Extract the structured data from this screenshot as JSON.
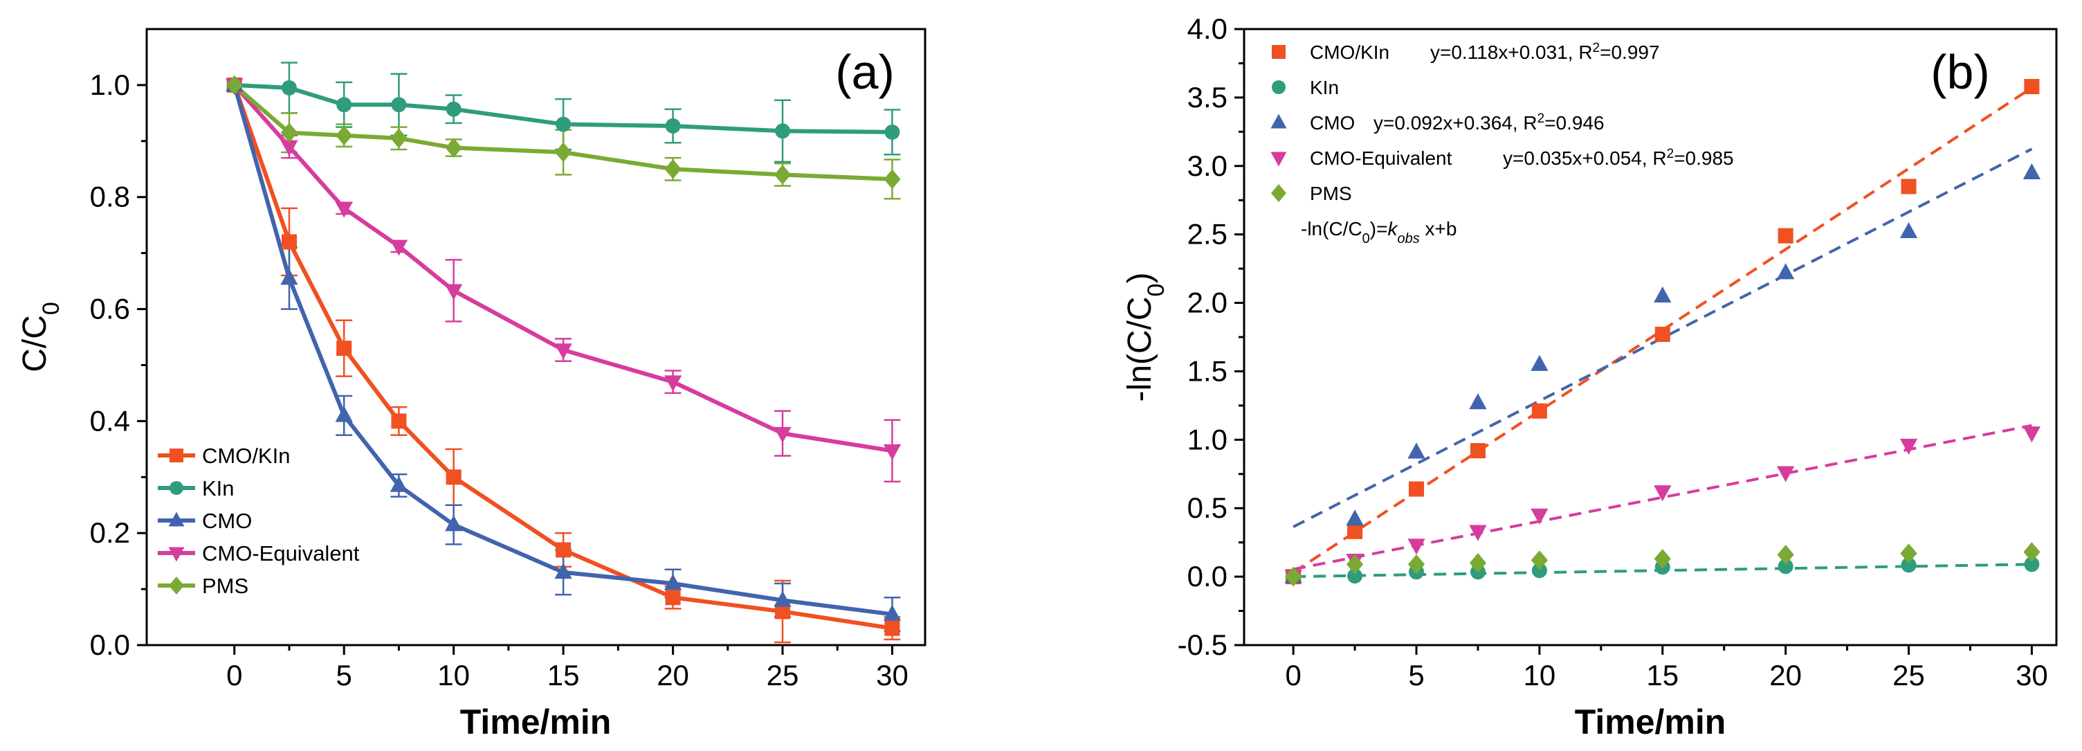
{
  "chart_data": [
    {
      "panel_label": "(a)",
      "type": "line",
      "xlabel": "Time/min",
      "ylabel_main": "C/C",
      "ylabel_sub": "0",
      "xlim": [
        -4,
        31.5
      ],
      "ylim": [
        0,
        1.1
      ],
      "xticks": [
        "0",
        "5",
        "10",
        "15",
        "20",
        "25",
        "30"
      ],
      "yticks": [
        "0.0",
        "0.2",
        "0.4",
        "0.6",
        "0.8",
        "1.0"
      ],
      "legend_position": "bottom-left",
      "x": [
        0,
        2.5,
        5,
        7.5,
        10,
        15,
        20,
        25,
        30
      ],
      "series": [
        {
          "name": "CMO/KIn",
          "color": "#f05022",
          "marker": "square",
          "values": [
            1.0,
            0.72,
            0.53,
            0.4,
            0.3,
            0.17,
            0.085,
            0.06,
            0.03
          ],
          "errors": [
            0.0,
            0.06,
            0.05,
            0.025,
            0.05,
            0.03,
            0.02,
            0.055,
            0.02
          ]
        },
        {
          "name": "KIn",
          "color": "#2e9c7d",
          "marker": "circle",
          "values": [
            1.0,
            0.995,
            0.965,
            0.965,
            0.957,
            0.93,
            0.927,
            0.918,
            0.916
          ],
          "errors": [
            0.0,
            0.045,
            0.04,
            0.055,
            0.025,
            0.045,
            0.03,
            0.055,
            0.04
          ]
        },
        {
          "name": "CMO",
          "color": "#4264ad",
          "marker": "triangle-up",
          "values": [
            1.0,
            0.655,
            0.41,
            0.285,
            0.215,
            0.13,
            0.11,
            0.08,
            0.055
          ],
          "errors": [
            0.0,
            0.055,
            0.035,
            0.02,
            0.035,
            0.04,
            0.025,
            0.03,
            0.03
          ]
        },
        {
          "name": "CMO-Equivalent",
          "color": "#d63c9e",
          "marker": "triangle-down",
          "values": [
            1.0,
            0.89,
            0.78,
            0.712,
            0.633,
            0.527,
            0.47,
            0.378,
            0.347
          ],
          "errors": [
            0.0,
            0.02,
            0.01,
            0.01,
            0.055,
            0.02,
            0.02,
            0.04,
            0.055
          ]
        },
        {
          "name": "PMS",
          "color": "#7aaa33",
          "marker": "diamond",
          "values": [
            1.0,
            0.915,
            0.91,
            0.905,
            0.888,
            0.88,
            0.85,
            0.84,
            0.832
          ],
          "errors": [
            0.0,
            0.035,
            0.02,
            0.02,
            0.015,
            0.04,
            0.02,
            0.02,
            0.035
          ]
        }
      ]
    },
    {
      "panel_label": "(b)",
      "type": "scatter",
      "xlabel": "Time/min",
      "ylabel_main": "-ln(C/C",
      "ylabel_sub": "0",
      "ylabel_end": ")",
      "xlim": [
        -2,
        31
      ],
      "ylim": [
        -0.5,
        4.0
      ],
      "xticks": [
        "0",
        "5",
        "10",
        "15",
        "20",
        "25",
        "30"
      ],
      "yticks": [
        "-0.5",
        "0.0",
        "0.5",
        "1.0",
        "1.5",
        "2.0",
        "2.5",
        "3.0",
        "3.5",
        "4.0"
      ],
      "legend_position": "top-left",
      "model_text_start": "-ln(C/C",
      "model_text_sub": "0",
      "model_text_mid": ")=",
      "model_text_k": "k",
      "model_text_ksub": "obs",
      "model_text_end": " x+b",
      "x": [
        0,
        2.5,
        5,
        7.5,
        10,
        15,
        20,
        25,
        30
      ],
      "series": [
        {
          "name": "CMO/KIn",
          "color": "#f05022",
          "marker": "square",
          "fit_label": "y=0.118x+0.031, R",
          "r2_sup": "2",
          "r2_value": "=0.997",
          "fit": {
            "slope": 0.118,
            "intercept": 0.031
          },
          "values": [
            0.0,
            0.33,
            0.64,
            0.92,
            1.21,
            1.77,
            2.49,
            2.85,
            3.58
          ]
        },
        {
          "name": "KIn",
          "color": "#2e9c7d",
          "marker": "circle",
          "fit_label": "",
          "r2_sup": "",
          "r2_value": "",
          "fit": {
            "slope": 0.003,
            "intercept": 0.0
          },
          "values": [
            0.0,
            0.005,
            0.035,
            0.035,
            0.045,
            0.07,
            0.075,
            0.085,
            0.09
          ]
        },
        {
          "name": "CMO",
          "color": "#4264ad",
          "marker": "triangle-up",
          "fit_label": "y=0.092x+0.364, R",
          "r2_sup": "2",
          "r2_value": "=0.946",
          "fit": {
            "slope": 0.092,
            "intercept": 0.364
          },
          "values": [
            0.0,
            0.42,
            0.91,
            1.27,
            1.55,
            2.05,
            2.22,
            2.52,
            2.95
          ]
        },
        {
          "name": "CMO-Equivalent",
          "color": "#d63c9e",
          "marker": "triangle-down",
          "fit_label": "y=0.035x+0.054, R",
          "r2_sup": "2",
          "r2_value": "=0.985",
          "fit": {
            "slope": 0.035,
            "intercept": 0.054
          },
          "values": [
            0.0,
            0.12,
            0.23,
            0.33,
            0.45,
            0.62,
            0.76,
            0.96,
            1.05
          ]
        },
        {
          "name": "PMS",
          "color": "#7aaa33",
          "marker": "diamond",
          "fit_label": "",
          "r2_sup": "",
          "r2_value": "",
          "values": [
            0.0,
            0.09,
            0.09,
            0.1,
            0.12,
            0.13,
            0.16,
            0.17,
            0.18
          ]
        }
      ]
    }
  ]
}
